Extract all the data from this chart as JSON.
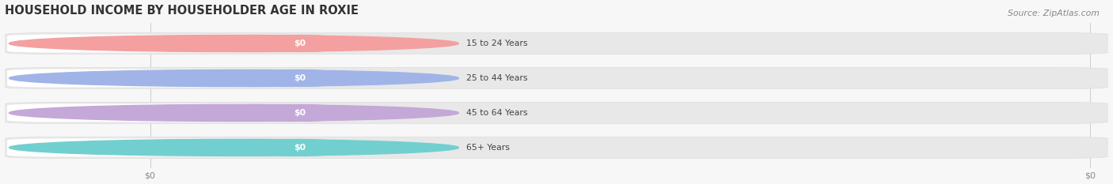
{
  "title": "HOUSEHOLD INCOME BY HOUSEHOLDER AGE IN ROXIE",
  "source_text": "Source: ZipAtlas.com",
  "categories": [
    "15 to 24 Years",
    "25 to 44 Years",
    "45 to 64 Years",
    "65+ Years"
  ],
  "values": [
    0,
    0,
    0,
    0
  ],
  "bar_colors": [
    "#f4a0a0",
    "#a0b4e8",
    "#c4a8d8",
    "#72cfcf"
  ],
  "label_text": [
    "$0",
    "$0",
    "$0",
    "$0"
  ],
  "background_color": "#f7f7f7",
  "bar_bg_color": "#e8e8e8",
  "bar_bg_border_color": "#dddddd",
  "title_color": "#333333",
  "label_color": "#ffffff",
  "tick_label_color": "#888888",
  "source_color": "#888888",
  "figsize": [
    14.06,
    2.33
  ],
  "dpi": 100
}
